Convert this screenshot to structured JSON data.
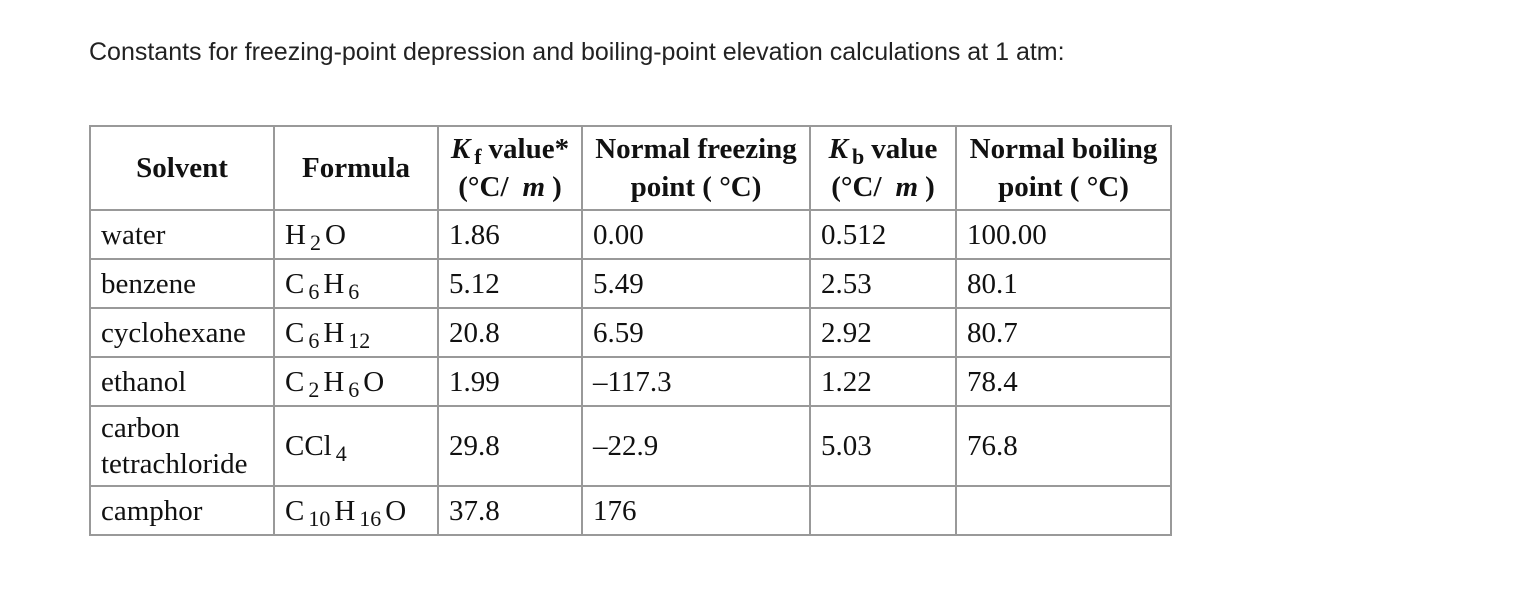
{
  "title": "Constants for freezing-point depression and boiling-point elevation calculations at 1 atm:",
  "table": {
    "header": [
      {
        "lines": [
          [
            {
              "text": "Solvent"
            }
          ]
        ]
      },
      {
        "lines": [
          [
            {
              "text": "Formula"
            }
          ]
        ]
      },
      {
        "lines": [
          [
            {
              "text": "K",
              "style": "italic"
            },
            {
              "text": "f",
              "style": "sub"
            },
            {
              "text": "value*"
            }
          ],
          [
            {
              "text": "(°C/"
            },
            {
              "text": "m",
              "style": "italic"
            },
            {
              "text": ")"
            }
          ]
        ]
      },
      {
        "lines": [
          [
            {
              "text": "Normal freezing point ( °C)"
            }
          ]
        ]
      },
      {
        "lines": [
          [
            {
              "text": "K",
              "style": "italic"
            },
            {
              "text": "b",
              "style": "sub"
            },
            {
              "text": "value"
            }
          ],
          [
            {
              "text": "(°C/"
            },
            {
              "text": "m",
              "style": "italic"
            },
            {
              "text": ")"
            }
          ]
        ]
      },
      {
        "lines": [
          [
            {
              "text": "Normal boiling point ( °C)"
            }
          ]
        ]
      }
    ],
    "rows": [
      {
        "solvent": "water",
        "formula": [
          {
            "el": "H",
            "n": "2"
          },
          {
            "el": "O"
          }
        ],
        "kf": "1.86",
        "fp": "0.00",
        "kb": "0.512",
        "bp": "100.00"
      },
      {
        "solvent": "benzene",
        "formula": [
          {
            "el": "C",
            "n": "6"
          },
          {
            "el": "H",
            "n": "6"
          }
        ],
        "kf": "5.12",
        "fp": "5.49",
        "kb": "2.53",
        "bp": "80.1"
      },
      {
        "solvent": "cyclohexane",
        "formula": [
          {
            "el": "C",
            "n": "6"
          },
          {
            "el": "H",
            "n": "12"
          }
        ],
        "kf": "20.8",
        "fp": "6.59",
        "kb": "2.92",
        "bp": "80.7"
      },
      {
        "solvent": "ethanol",
        "formula": [
          {
            "el": "C",
            "n": "2"
          },
          {
            "el": "H",
            "n": "6"
          },
          {
            "el": "O"
          }
        ],
        "kf": "1.99",
        "fp": "–117.3",
        "kb": "1.22",
        "bp": "78.4"
      },
      {
        "solvent": "carbon tetrachloride",
        "formula": [
          {
            "el": "CCl",
            "n": "4"
          }
        ],
        "kf": "29.8",
        "fp": "–22.9",
        "kb": "5.03",
        "bp": "76.8"
      },
      {
        "solvent": "camphor",
        "formula": [
          {
            "el": "C",
            "n": "10"
          },
          {
            "el": "H",
            "n": "16"
          },
          {
            "el": "O"
          }
        ],
        "kf": "37.8",
        "fp": "176",
        "kb": null,
        "bp": null
      }
    ]
  }
}
